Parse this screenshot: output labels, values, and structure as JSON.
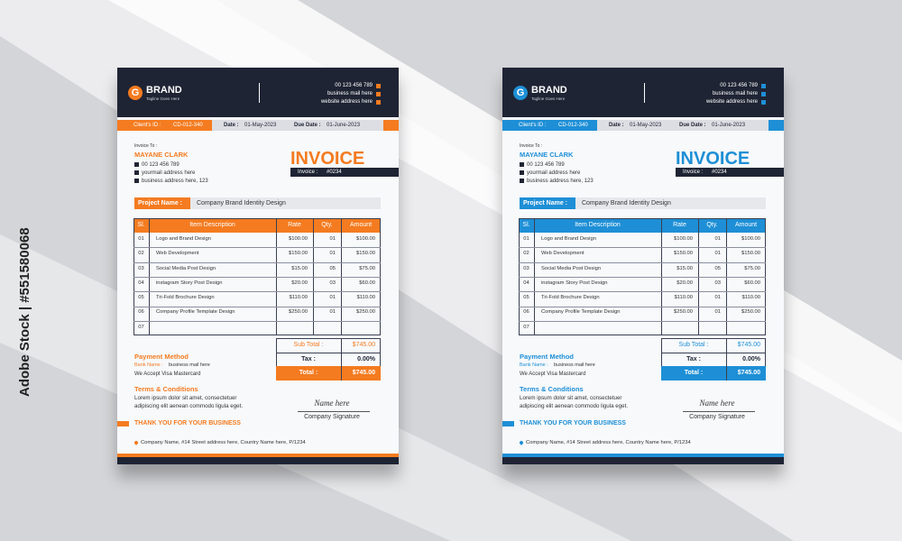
{
  "watermark": "Adobe Stock | #551580068",
  "invoices": [
    {
      "accent": "#f47b20",
      "brand": {
        "logo": "G",
        "name": "BRAND",
        "tagline": "Tagline Goes Here"
      },
      "contact": [
        "00 123 456 789",
        "business mail here",
        "website address here"
      ],
      "client_id": {
        "label": "Client's ID :",
        "value": "CD-012-340"
      },
      "date": {
        "label": "Date :",
        "value": "01-May-2023"
      },
      "due_date": {
        "label": "Due Date :",
        "value": "01-June-2023"
      },
      "bill_to": {
        "heading": "Invoice To :",
        "name": "MAYANE CLARK",
        "phone": "00 123 456 789",
        "email": "yourmail address here",
        "address": "business address here, 123"
      },
      "title": "INVOICE",
      "number": {
        "label": "Invoice :",
        "value": "#0234"
      },
      "project": {
        "label": "Project Name :",
        "value": "Company Brand Identity Design"
      },
      "table": {
        "columns": [
          "Sl.",
          "Item Description",
          "Rate",
          "Qty.",
          "Amount"
        ],
        "rows": [
          {
            "sl": "01",
            "description": "Logo and Brand Design",
            "rate": "$100.00",
            "qty": "01",
            "amount": "$100.00"
          },
          {
            "sl": "02",
            "description": "Web Development",
            "rate": "$150.00",
            "qty": "01",
            "amount": "$150.00"
          },
          {
            "sl": "03",
            "description": "Social Media Post Design",
            "rate": "$15.00",
            "qty": "05",
            "amount": "$75.00"
          },
          {
            "sl": "04",
            "description": "instagram Story Post Design",
            "rate": "$20.00",
            "qty": "03",
            "amount": "$60.00"
          },
          {
            "sl": "05",
            "description": "Tri-Fold Brochure Design",
            "rate": "$110.00",
            "qty": "01",
            "amount": "$110.00"
          },
          {
            "sl": "06",
            "description": "Company Profile Template Design",
            "rate": "$250.00",
            "qty": "01",
            "amount": "$250.00"
          },
          {
            "sl": "07"
          }
        ]
      },
      "totals": [
        {
          "label": "Sub Total :",
          "value": "$745.00"
        },
        {
          "label": "Tax :",
          "value": "0.00%"
        },
        {
          "label": "Total :",
          "value": "$745.00"
        }
      ],
      "payment": {
        "heading": "Payment Method",
        "bank_label": "Bank Name :",
        "bank_value": "business mail here",
        "accept": "We Accept Visa Mastercard"
      },
      "terms": {
        "heading": "Terms & Conditions",
        "lines": [
          "Lorem ipsum dolor sit amet, consectetuer",
          "adipiscing elit aenean commodo ligula eget."
        ]
      },
      "signature": {
        "name": "Name here",
        "caption": "Company Signature"
      },
      "thanks": "THANK YOU FOR YOUR BUSINESS",
      "footer": "Company Name, #14 Street address here, Country Name here, P/1234"
    },
    {
      "accent": "#1e8fd6",
      "brand": {
        "logo": "G",
        "name": "BRAND",
        "tagline": "Tagline Goes Here"
      },
      "contact": [
        "00 123 456 789",
        "business mail here",
        "website address here"
      ],
      "client_id": {
        "label": "Client's ID :",
        "value": "CD-012-340"
      },
      "date": {
        "label": "Date :",
        "value": "01-May-2023"
      },
      "due_date": {
        "label": "Due Date :",
        "value": "01-June-2023"
      },
      "bill_to": {
        "heading": "Invoice To :",
        "name": "MAYANE CLARK",
        "phone": "00 123 456 789",
        "email": "yourmail address here",
        "address": "business address here, 123"
      },
      "title": "INVOICE",
      "number": {
        "label": "Invoice :",
        "value": "#0234"
      },
      "project": {
        "label": "Project Name :",
        "value": "Company Brand Identity Design"
      },
      "table": {
        "columns": [
          "Sl.",
          "Item Description",
          "Rate",
          "Qty.",
          "Amount"
        ],
        "rows": [
          {
            "sl": "01",
            "description": "Logo and Brand Design",
            "rate": "$100.00",
            "qty": "01",
            "amount": "$100.00"
          },
          {
            "sl": "02",
            "description": "Web Development",
            "rate": "$150.00",
            "qty": "01",
            "amount": "$150.00"
          },
          {
            "sl": "03",
            "description": "Social Media Post Design",
            "rate": "$15.00",
            "qty": "05",
            "amount": "$75.00"
          },
          {
            "sl": "04",
            "description": "instagram Story Post Design",
            "rate": "$20.00",
            "qty": "03",
            "amount": "$60.00"
          },
          {
            "sl": "05",
            "description": "Tri-Fold Brochure Design",
            "rate": "$110.00",
            "qty": "01",
            "amount": "$110.00"
          },
          {
            "sl": "06",
            "description": "Company Profile Template Design",
            "rate": "$250.00",
            "qty": "01",
            "amount": "$250.00"
          },
          {
            "sl": "07"
          }
        ]
      },
      "totals": [
        {
          "label": "Sub Total :",
          "value": "$745.00"
        },
        {
          "label": "Tax :",
          "value": "0.00%"
        },
        {
          "label": "Total :",
          "value": "$745.00"
        }
      ],
      "payment": {
        "heading": "Payment Method",
        "bank_label": "Bank Name :",
        "bank_value": "business mail here",
        "accept": "We Accept Visa Mastercard"
      },
      "terms": {
        "heading": "Terms & Conditions",
        "lines": [
          "Lorem ipsum dolor sit amet, consectetuer",
          "adipiscing elit aenean commodo ligula eget."
        ]
      },
      "signature": {
        "name": "Name here",
        "caption": "Company Signature"
      },
      "thanks": "THANK YOU FOR YOUR BUSINESS",
      "footer": "Company Name, #14 Street address here, Country Name here, P/1234"
    }
  ]
}
